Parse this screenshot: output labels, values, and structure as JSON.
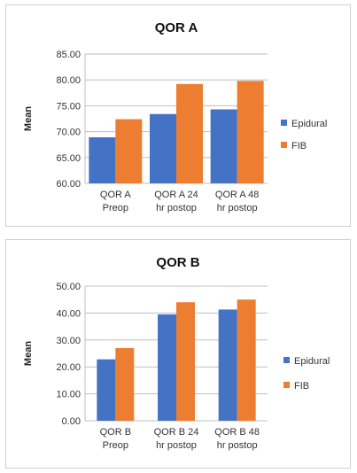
{
  "chart_data": [
    {
      "type": "bar",
      "title": "QOR A",
      "ylabel": "Mean",
      "ylim": [
        60,
        85
      ],
      "yticks": [
        "60.00",
        "65.00",
        "70.00",
        "75.00",
        "80.00",
        "85.00"
      ],
      "categories": [
        [
          "QOR A",
          "Preop"
        ],
        [
          "QOR A 24",
          "hr postop"
        ],
        [
          "QOR A  48",
          "hr postop"
        ]
      ],
      "series": [
        {
          "name": "Epidural",
          "color": "#4472c4",
          "values": [
            68.9,
            73.4,
            74.3
          ]
        },
        {
          "name": "FIB",
          "color": "#ed7d31",
          "values": [
            72.4,
            79.2,
            79.8
          ]
        }
      ],
      "legend": "right",
      "grid": false
    },
    {
      "type": "bar",
      "title": "QOR B",
      "ylabel": "Mean",
      "ylim": [
        0,
        50
      ],
      "yticks": [
        "0.00",
        "10.00",
        "20.00",
        "30.00",
        "40.00",
        "50.00"
      ],
      "categories": [
        [
          "QOR B",
          "Preop"
        ],
        [
          "QOR B 24",
          "hr postop"
        ],
        [
          "QOR B 48",
          "hr postop"
        ]
      ],
      "series": [
        {
          "name": "Epidural",
          "color": "#4472c4",
          "values": [
            22.8,
            39.5,
            41.3
          ]
        },
        {
          "name": "FIB",
          "color": "#ed7d31",
          "values": [
            27.0,
            44.0,
            45.0
          ]
        }
      ],
      "legend": "right",
      "grid": false
    }
  ]
}
